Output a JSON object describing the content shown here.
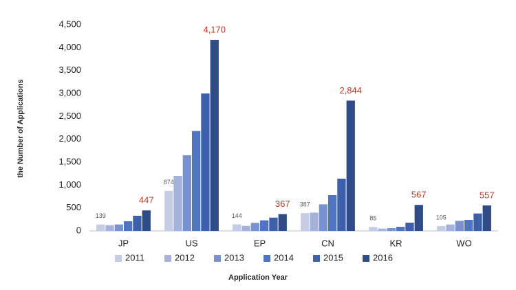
{
  "chart_data": {
    "type": "bar",
    "y_label": "the Number of Applications",
    "x_label": "Application Year",
    "categories": [
      "JP",
      "US",
      "EP",
      "CN",
      "KR",
      "WO"
    ],
    "series": [
      {
        "name": "2011",
        "color": "#c5cce6",
        "values": [
          139,
          874,
          144,
          387,
          85,
          105
        ],
        "value_labels": [
          "139",
          "874",
          "144",
          "387",
          "85",
          "105"
        ],
        "label_color": "#595959"
      },
      {
        "name": "2012",
        "color": "#a5b3dc",
        "values": [
          125,
          1200,
          110,
          400,
          50,
          140
        ]
      },
      {
        "name": "2013",
        "color": "#7891cf",
        "values": [
          140,
          1650,
          175,
          580,
          60,
          220
        ]
      },
      {
        "name": "2014",
        "color": "#5174c0",
        "values": [
          210,
          2180,
          230,
          780,
          90,
          240
        ]
      },
      {
        "name": "2015",
        "color": "#3e5fa9",
        "values": [
          330,
          3000,
          290,
          1140,
          180,
          380
        ]
      },
      {
        "name": "2016",
        "color": "#2f4b88",
        "values": [
          447,
          4170,
          367,
          2844,
          567,
          557
        ],
        "value_labels": [
          "447",
          "4,170",
          "367",
          "2,844",
          "567",
          "557"
        ],
        "label_color": "#c0392b"
      }
    ],
    "ylim": [
      0,
      4500
    ],
    "yticks": [
      0,
      500,
      {
        "value": 1000,
        "label": "1,000"
      },
      {
        "value": 1500,
        "label": "1,500"
      },
      {
        "value": 2000,
        "label": "2,000"
      },
      {
        "value": 2500,
        "label": "2,500"
      },
      {
        "value": 3000,
        "label": "3,000"
      },
      {
        "value": 3500,
        "label": "3,500"
      },
      {
        "value": 4000,
        "label": "4,000"
      },
      {
        "value": 4500,
        "label": "4,500"
      }
    ],
    "grid": false
  }
}
